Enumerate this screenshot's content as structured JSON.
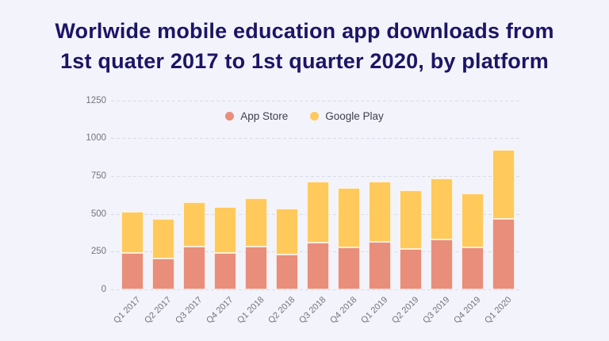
{
  "title": {
    "line1": "Worlwide mobile education app downloads from",
    "line2": "1st quater 2017 to 1st quarter 2020, by platform"
  },
  "chart_data": {
    "type": "bar",
    "stacked": true,
    "title": "Worlwide mobile education app downloads from 1st quater 2017 to 1st quarter 2020, by platform",
    "categories": [
      "Q1 2017",
      "Q2 2017",
      "Q3 2017",
      "Q4 2017",
      "Q1 2018",
      "Q2 2018",
      "Q3 2018",
      "Q4 2018",
      "Q1 2019",
      "Q2 2019",
      "Q3 2019",
      "Q4 2019",
      "Q1 2020"
    ],
    "series": [
      {
        "name": "App Store",
        "color": "#E88E7B",
        "values": [
          240,
          205,
          283,
          240,
          283,
          230,
          310,
          279,
          317,
          267,
          328,
          279,
          465
        ]
      },
      {
        "name": "Google Play",
        "color": "#FFC95C",
        "values": [
          274,
          261,
          292,
          305,
          318,
          305,
          401,
          394,
          394,
          390,
          404,
          354,
          459
        ]
      }
    ],
    "totals": [
      514,
      466,
      575,
      545,
      601,
      535,
      711,
      673,
      711,
      657,
      732,
      633,
      924
    ],
    "xlabel": "",
    "ylabel": "",
    "ylim": [
      0,
      1250
    ],
    "yticks": [
      0,
      250,
      500,
      750,
      1000,
      1250
    ],
    "grid": "horizontal-dashed",
    "legend_position": "top-center"
  },
  "colors": {
    "background": "#F3F3FB",
    "title_text": "#1B1566",
    "axis_text": "#73737F",
    "legend_text": "#3F3F4D",
    "gridline": "#DBDBE7",
    "segment_border": "#FFFFFF"
  }
}
